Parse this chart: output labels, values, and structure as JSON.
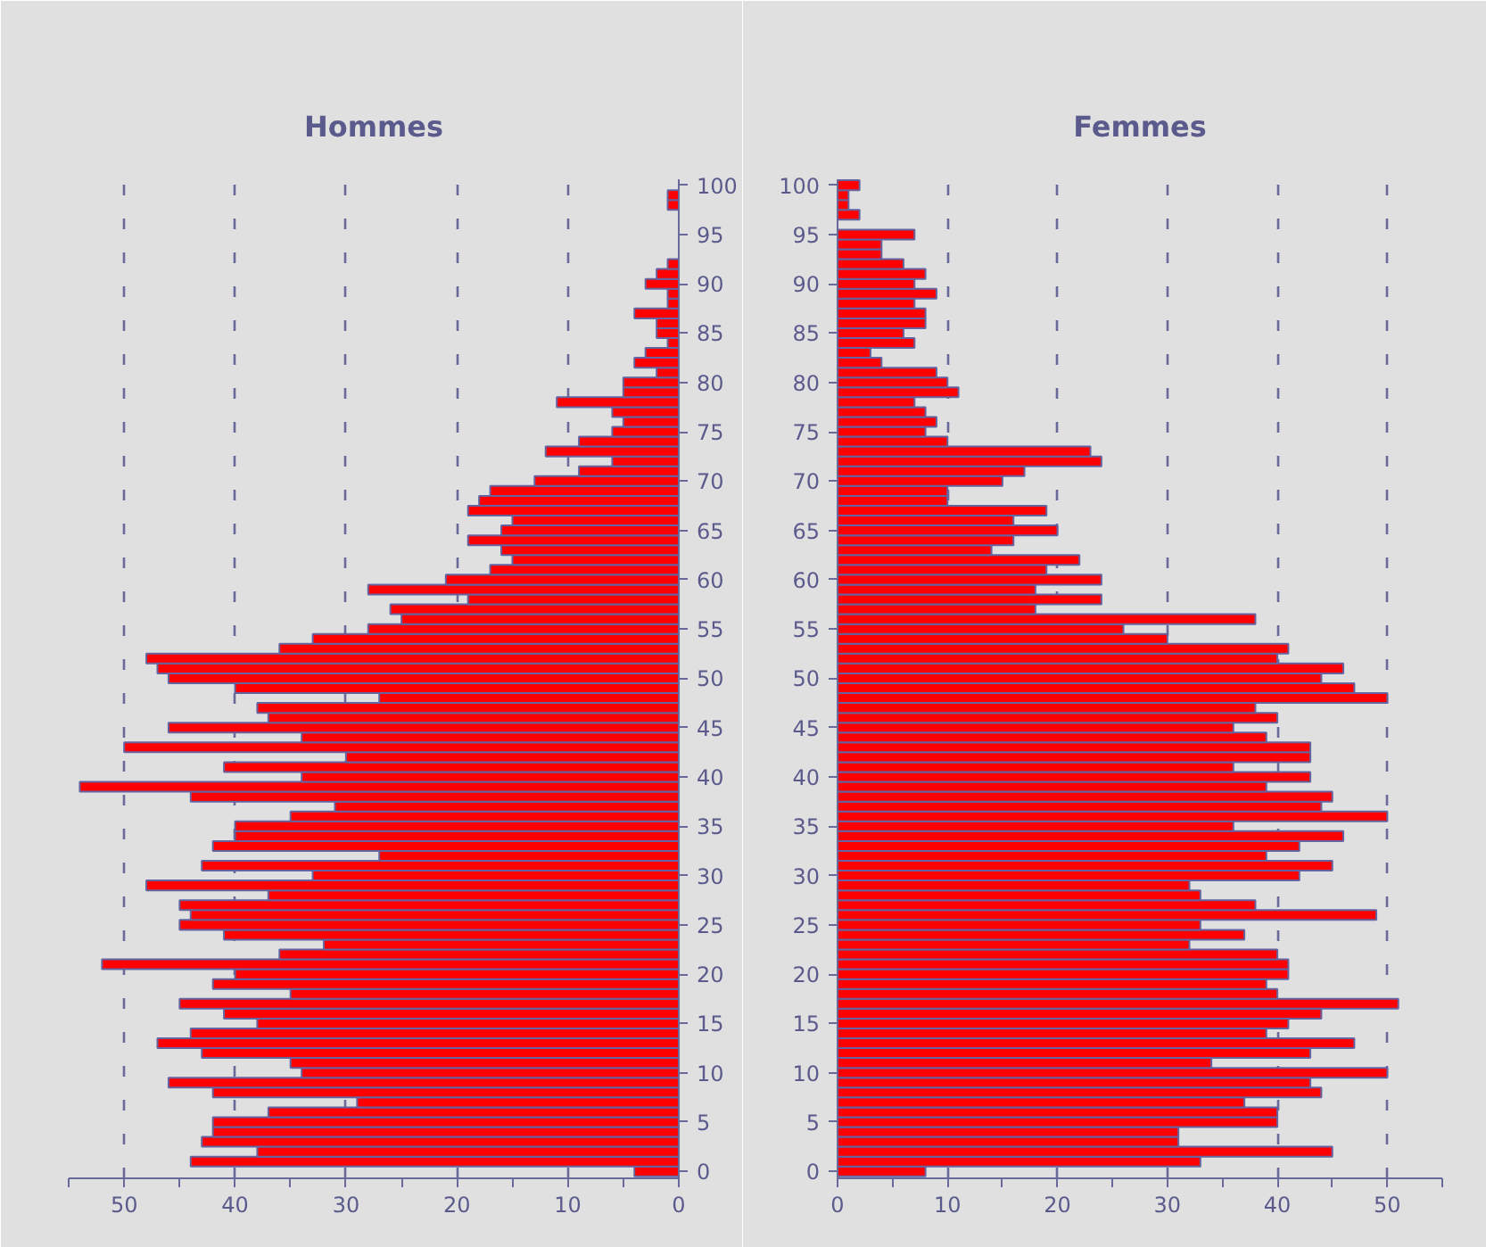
{
  "chart_data": [
    {
      "type": "bar",
      "orientation": "horizontal",
      "title": "Hommes",
      "x": [
        0,
        1,
        2,
        3,
        4,
        5,
        6,
        7,
        8,
        9,
        10,
        11,
        12,
        13,
        14,
        15,
        16,
        17,
        18,
        19,
        20,
        21,
        22,
        23,
        24,
        25,
        26,
        27,
        28,
        29,
        30,
        31,
        32,
        33,
        34,
        35,
        36,
        37,
        38,
        39,
        40,
        41,
        42,
        43,
        44,
        45,
        46,
        47,
        48,
        49,
        50,
        51,
        52,
        53,
        54,
        55,
        56,
        57,
        58,
        59,
        60,
        61,
        62,
        63,
        64,
        65,
        66,
        67,
        68,
        69,
        70,
        71,
        72,
        73,
        74,
        75,
        76,
        77,
        78,
        79,
        80,
        81,
        82,
        83,
        84,
        85,
        86,
        87,
        88,
        89,
        90,
        91,
        92,
        93,
        94,
        95,
        96,
        97,
        98,
        99,
        100
      ],
      "series": [
        {
          "color": "#ff0000",
          "values": [
            4,
            44,
            38,
            43,
            42,
            42,
            37,
            29,
            42,
            46,
            34,
            35,
            43,
            47,
            44,
            38,
            41,
            45,
            35,
            42,
            40,
            52,
            36,
            32,
            41,
            45,
            44,
            45,
            37,
            48,
            33,
            43,
            27,
            42,
            40,
            40,
            35,
            31,
            44,
            54,
            34,
            41,
            30,
            50,
            34,
            46,
            37,
            38,
            27,
            40,
            46,
            47,
            48,
            36,
            33,
            28,
            25,
            26,
            19,
            28,
            21,
            17,
            15,
            16,
            19,
            16,
            15,
            19,
            18,
            17,
            13,
            9,
            6,
            12,
            9,
            6,
            5,
            6,
            11,
            5,
            5,
            2,
            4,
            3,
            1,
            2,
            2,
            4,
            1,
            1,
            3,
            2,
            1,
            0,
            0,
            0,
            0,
            0,
            1,
            1,
            0
          ]
        }
      ],
      "xlim": [
        55,
        0
      ],
      "xticks": [
        0,
        {
          "value": 5,
          "label": null
        },
        10,
        {
          "value": 15,
          "label": null
        },
        20,
        {
          "value": 25,
          "label": null
        },
        30,
        {
          "value": 35,
          "label": null
        },
        40,
        {
          "value": 45,
          "label": null
        },
        50,
        {
          "value": 55,
          "label": null
        }
      ],
      "ylim": [
        -0.7,
        100.6
      ],
      "yticks": [
        0,
        5,
        10,
        15,
        20,
        25,
        30,
        35,
        40,
        45,
        50,
        55,
        60,
        65,
        70,
        75,
        80,
        85,
        90,
        95,
        100
      ],
      "grid": "x"
    },
    {
      "type": "bar",
      "orientation": "horizontal",
      "title": "Femmes",
      "x": [
        0,
        1,
        2,
        3,
        4,
        5,
        6,
        7,
        8,
        9,
        10,
        11,
        12,
        13,
        14,
        15,
        16,
        17,
        18,
        19,
        20,
        21,
        22,
        23,
        24,
        25,
        26,
        27,
        28,
        29,
        30,
        31,
        32,
        33,
        34,
        35,
        36,
        37,
        38,
        39,
        40,
        41,
        42,
        43,
        44,
        45,
        46,
        47,
        48,
        49,
        50,
        51,
        52,
        53,
        54,
        55,
        56,
        57,
        58,
        59,
        60,
        61,
        62,
        63,
        64,
        65,
        66,
        67,
        68,
        69,
        70,
        71,
        72,
        73,
        74,
        75,
        76,
        77,
        78,
        79,
        80,
        81,
        82,
        83,
        84,
        85,
        86,
        87,
        88,
        89,
        90,
        91,
        92,
        93,
        94,
        95,
        96,
        97,
        98,
        99,
        100
      ],
      "series": [
        {
          "color": "#ff0000",
          "values": [
            8,
            33,
            45,
            31,
            31,
            40,
            40,
            37,
            44,
            43,
            50,
            34,
            43,
            47,
            39,
            41,
            44,
            51,
            40,
            39,
            41,
            41,
            40,
            32,
            37,
            33,
            49,
            38,
            33,
            32,
            42,
            45,
            39,
            42,
            46,
            36,
            50,
            44,
            45,
            39,
            43,
            36,
            43,
            43,
            39,
            36,
            40,
            38,
            50,
            47,
            44,
            46,
            40,
            41,
            30,
            26,
            38,
            18,
            24,
            18,
            24,
            19,
            22,
            14,
            16,
            20,
            16,
            19,
            10,
            10,
            15,
            17,
            24,
            23,
            10,
            8,
            9,
            8,
            7,
            11,
            10,
            9,
            4,
            3,
            7,
            6,
            8,
            8,
            7,
            9,
            7,
            8,
            6,
            4,
            4,
            7,
            0,
            2,
            1,
            1,
            2
          ]
        }
      ],
      "xlim": [
        0,
        55
      ],
      "xticks": [
        0,
        {
          "value": 5,
          "label": null
        },
        10,
        {
          "value": 15,
          "label": null
        },
        20,
        {
          "value": 25,
          "label": null
        },
        30,
        {
          "value": 35,
          "label": null
        },
        40,
        {
          "value": 45,
          "label": null
        },
        50,
        {
          "value": 55,
          "label": null
        }
      ],
      "ylim": [
        -0.7,
        100.6
      ],
      "yticks": [
        0,
        5,
        10,
        15,
        20,
        25,
        30,
        35,
        40,
        45,
        50,
        55,
        60,
        65,
        70,
        75,
        80,
        85,
        90,
        95,
        100
      ],
      "grid": "x"
    }
  ]
}
